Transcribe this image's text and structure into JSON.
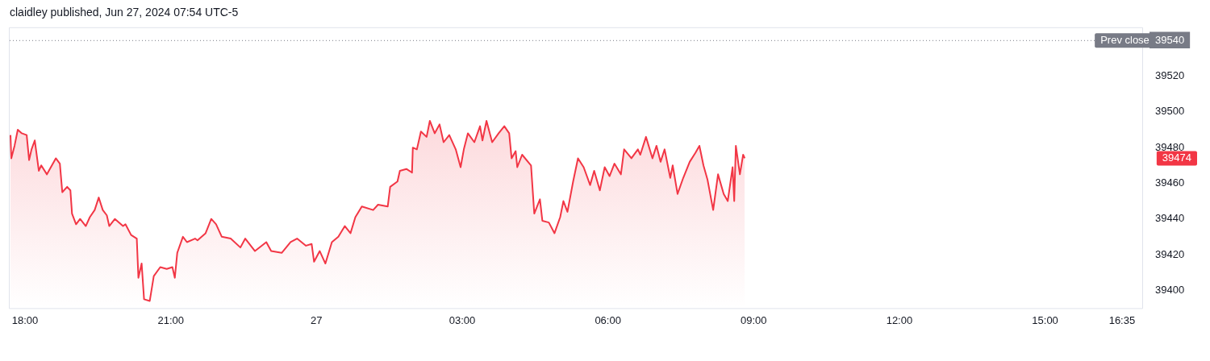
{
  "chart_data": {
    "type": "area",
    "title": "claidley published, Jun 27, 2024 07:54 UTC-5",
    "x": [
      "2024-06-26T17:42",
      "2024-06-26T17:43",
      "2024-06-26T17:47",
      "2024-06-26T17:51",
      "2024-06-26T17:56",
      "2024-06-26T18:02",
      "2024-06-26T18:05",
      "2024-06-26T18:08",
      "2024-06-26T18:12",
      "2024-06-26T18:17",
      "2024-06-26T18:20",
      "2024-06-26T18:27",
      "2024-06-26T18:38",
      "2024-06-26T18:43",
      "2024-06-26T18:46",
      "2024-06-26T18:52",
      "2024-06-26T18:56",
      "2024-06-26T18:58",
      "2024-06-26T19:03",
      "2024-06-26T19:08",
      "2024-06-26T19:15",
      "2024-06-26T19:20",
      "2024-06-26T19:26",
      "2024-06-26T19:31",
      "2024-06-26T19:36",
      "2024-06-26T19:41",
      "2024-06-26T19:44",
      "2024-06-26T19:51",
      "2024-06-26T20:01",
      "2024-06-26T20:04",
      "2024-06-26T20:11",
      "2024-06-26T20:18",
      "2024-06-26T20:20",
      "2024-06-26T20:24",
      "2024-06-26T20:27",
      "2024-06-26T20:34",
      "2024-06-26T20:39",
      "2024-06-26T20:47",
      "2024-06-26T20:55",
      "2024-06-26T21:02",
      "2024-06-26T21:05",
      "2024-06-26T21:08",
      "2024-06-26T21:15",
      "2024-06-26T21:20",
      "2024-06-26T21:30",
      "2024-06-26T21:33",
      "2024-06-26T21:43",
      "2024-06-26T21:50",
      "2024-06-26T21:56",
      "2024-06-26T22:03",
      "2024-06-26T22:14",
      "2024-06-26T22:26",
      "2024-06-26T22:32",
      "2024-06-26T22:44",
      "2024-06-26T22:58",
      "2024-06-26T23:04",
      "2024-06-26T23:17",
      "2024-06-26T23:28",
      "2024-06-26T23:36",
      "2024-06-26T23:47",
      "2024-06-26T23:54",
      "2024-06-26T23:57",
      "2024-06-27T00:04",
      "2024-06-27T00:11",
      "2024-06-27T00:19",
      "2024-06-27T00:27",
      "2024-06-27T00:35",
      "2024-06-27T00:42",
      "2024-06-27T00:48",
      "2024-06-27T00:56",
      "2024-06-27T01:10",
      "2024-06-27T01:16",
      "2024-06-27T01:28",
      "2024-06-27T01:31",
      "2024-06-27T01:40",
      "2024-06-27T01:43",
      "2024-06-27T01:51",
      "2024-06-27T01:58",
      "2024-06-27T01:59",
      "2024-06-27T02:04",
      "2024-06-27T02:09",
      "2024-06-27T02:16",
      "2024-06-27T02:20",
      "2024-06-27T02:26",
      "2024-06-27T02:32",
      "2024-06-27T02:37",
      "2024-06-27T02:44",
      "2024-06-27T02:52",
      "2024-06-27T02:58",
      "2024-06-27T03:02",
      "2024-06-27T03:07",
      "2024-06-27T03:15",
      "2024-06-27T03:22",
      "2024-06-27T03:25",
      "2024-06-27T03:30",
      "2024-06-27T03:37",
      "2024-06-27T03:45",
      "2024-06-27T03:52",
      "2024-06-27T03:58",
      "2024-06-27T04:01",
      "2024-06-27T04:06",
      "2024-06-27T04:08",
      "2024-06-27T04:14",
      "2024-06-27T04:25",
      "2024-06-27T04:29",
      "2024-06-27T04:36",
      "2024-06-27T04:39",
      "2024-06-27T04:47",
      "2024-06-27T04:54",
      "2024-06-27T05:01",
      "2024-06-27T05:05",
      "2024-06-27T05:10",
      "2024-06-27T05:17",
      "2024-06-27T05:23",
      "2024-06-27T05:30",
      "2024-06-27T05:38",
      "2024-06-27T05:43",
      "2024-06-27T05:50",
      "2024-06-27T05:56",
      "2024-06-27T06:02",
      "2024-06-27T06:08",
      "2024-06-27T06:16",
      "2024-06-27T06:20",
      "2024-06-27T06:29",
      "2024-06-27T06:37",
      "2024-06-27T06:40",
      "2024-06-27T06:47",
      "2024-06-27T06:55",
      "2024-06-27T07:00",
      "2024-06-27T07:05",
      "2024-06-27T07:10",
      "2024-06-27T07:17",
      "2024-06-27T07:20",
      "2024-06-27T07:26",
      "2024-06-27T07:33",
      "2024-06-27T07:41",
      "2024-06-27T07:48",
      "2024-06-27T07:53",
      "2024-06-27T07:58",
      "2024-06-27T08:03",
      "2024-06-27T08:10",
      "2024-06-27T08:16",
      "2024-06-27T08:23",
      "2024-06-27T08:28",
      "2024-06-27T08:34",
      "2024-06-27T08:36",
      "2024-06-27T08:38",
      "2024-06-27T08:43",
      "2024-06-27T08:47",
      "2024-06-27T08:49"
    ],
    "series": [
      {
        "color": "#f23645",
        "values": [
          39487,
          39474,
          39481,
          39490,
          39488,
          39487,
          39473,
          39479,
          39484,
          39467,
          39470,
          39465,
          39474,
          39471,
          39455,
          39458,
          39456,
          39443,
          39437,
          39440,
          39436,
          39441,
          39445,
          39452,
          39445,
          39442,
          39436,
          39440,
          39436,
          39437,
          39431,
          39429,
          39407,
          39415,
          39395,
          39394,
          39408,
          39413,
          39412,
          39413,
          39407,
          39421,
          39430,
          39427,
          39429,
          39428,
          39432,
          39440,
          39437,
          39430,
          39429,
          39424,
          39429,
          39422,
          39427,
          39422,
          39421,
          39427,
          39429,
          39425,
          39426,
          39416,
          39422,
          39415,
          39427,
          39430,
          39436,
          39432,
          39441,
          39447,
          39445,
          39448,
          39447,
          39458,
          39461,
          39467,
          39468,
          39466,
          39480,
          39479,
          39489,
          39486,
          39495,
          39488,
          39493,
          39483,
          39487,
          39479,
          39469,
          39479,
          39488,
          39483,
          39492,
          39484,
          39495,
          39483,
          39488,
          39492,
          39488,
          39474,
          39478,
          39469,
          39476,
          39470,
          39443,
          39451,
          39439,
          39438,
          39432,
          39441,
          39450,
          39444,
          39461,
          39474,
          39469,
          39459,
          39467,
          39456,
          39469,
          39464,
          39471,
          39465,
          39479,
          39474,
          39479,
          39476,
          39486,
          39474,
          39481,
          39472,
          39479,
          39463,
          39470,
          39454,
          39463,
          39472,
          39477,
          39481,
          39470,
          39462,
          39445,
          39465,
          39454,
          39450,
          39469,
          39450,
          39481,
          39465,
          39476,
          39474
        ]
      }
    ],
    "xlim": [
      "2024-06-26T17:41",
      "2024-06-27T17:00"
    ],
    "xticks": [
      {
        "value": "2024-06-26T18:00",
        "label": "18:00"
      },
      {
        "value": "2024-06-26T21:00",
        "label": "21:00"
      },
      {
        "value": "2024-06-27T00:00",
        "label": "27"
      },
      {
        "value": "2024-06-27T03:00",
        "label": "03:00"
      },
      {
        "value": "2024-06-27T06:00",
        "label": "06:00"
      },
      {
        "value": "2024-06-27T09:00",
        "label": "09:00"
      },
      {
        "value": "2024-06-27T12:00",
        "label": "12:00"
      },
      {
        "value": "2024-06-27T15:00",
        "label": "15:00"
      },
      {
        "value": "2024-06-27T16:35",
        "label": "16:35"
      }
    ],
    "ylim": [
      39390,
      39547
    ],
    "yticks": [
      39400,
      39420,
      39440,
      39460,
      39480,
      39500,
      39520,
      39540
    ],
    "ref_lines": [
      {
        "axis": "y",
        "value": 39540,
        "label": "Prev close",
        "color": "#787b86",
        "line_style": "dotted"
      }
    ],
    "annotations": [
      "39474"
    ],
    "grid": false,
    "legend": false,
    "marker": "none",
    "line_style": "solid"
  }
}
